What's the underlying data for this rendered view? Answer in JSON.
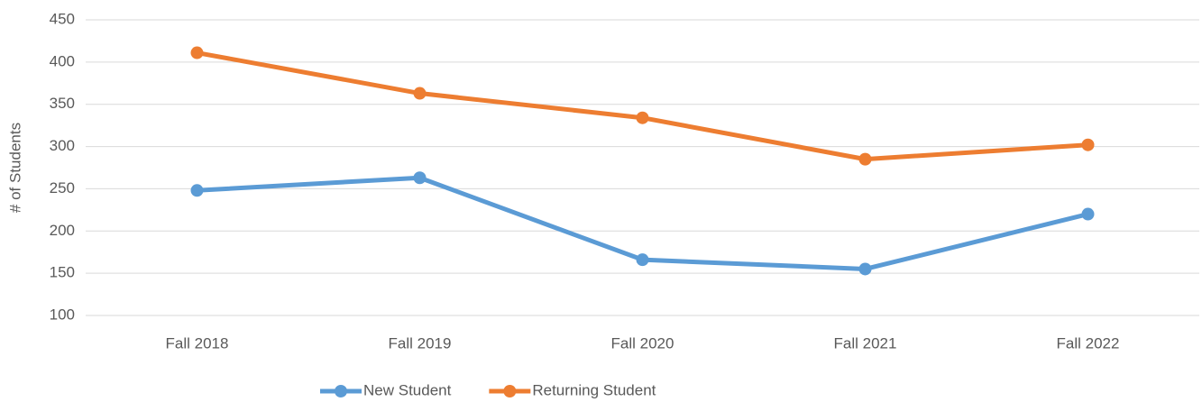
{
  "chart_data": {
    "type": "line",
    "y_label": "# of Students",
    "categories": [
      "Fall 2018",
      "Fall 2019",
      "Fall 2020",
      "Fall 2021",
      "Fall 2022"
    ],
    "series": [
      {
        "name": "New Student",
        "color": "#5b9bd5",
        "values": [
          248,
          263,
          166,
          155,
          220
        ]
      },
      {
        "name": "Returning Student",
        "color": "#ed7d31",
        "values": [
          411,
          363,
          334,
          285,
          302
        ]
      }
    ],
    "ylim": [
      100,
      450
    ],
    "yticks": [
      100,
      150,
      200,
      250,
      300,
      350,
      400,
      450
    ],
    "grid": true,
    "legend": "bottom"
  }
}
